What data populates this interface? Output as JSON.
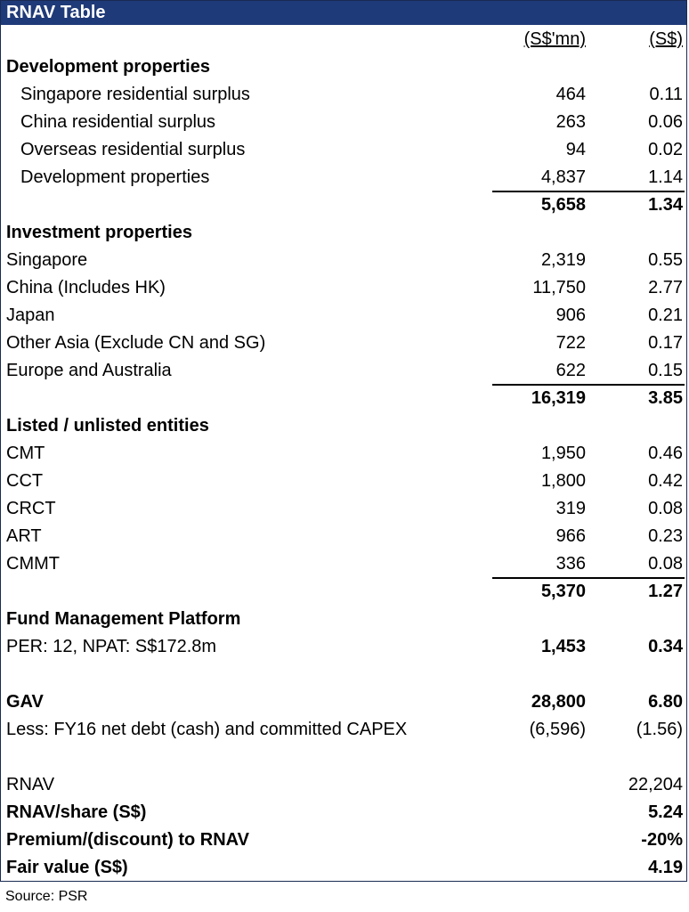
{
  "title": "RNAV Table",
  "headers": {
    "c1": "(S$'mn)",
    "c2": "(S$)"
  },
  "dev": {
    "heading": "Development properties",
    "rows": [
      {
        "label": "Singapore residential surplus",
        "v1": "464",
        "v2": "0.11"
      },
      {
        "label": "China residential surplus",
        "v1": "263",
        "v2": "0.06"
      },
      {
        "label": "Overseas residential surplus",
        "v1": "94",
        "v2": "0.02"
      },
      {
        "label": "Development properties",
        "v1": "4,837",
        "v2": "1.14"
      }
    ],
    "total": {
      "v1": "5,658",
      "v2": "1.34"
    }
  },
  "inv": {
    "heading": "Investment properties",
    "rows": [
      {
        "label": "Singapore",
        "v1": "2,319",
        "v2": "0.55"
      },
      {
        "label": "China (Includes HK)",
        "v1": "11,750",
        "v2": "2.77"
      },
      {
        "label": "Japan",
        "v1": "906",
        "v2": "0.21"
      },
      {
        "label": "Other Asia (Exclude CN and SG)",
        "v1": "722",
        "v2": "0.17"
      },
      {
        "label": "Europe and Australia",
        "v1": "622",
        "v2": "0.15"
      }
    ],
    "total": {
      "v1": "16,319",
      "v2": "3.85"
    }
  },
  "listed": {
    "heading": "Listed / unlisted entities",
    "rows": [
      {
        "label": "CMT",
        "v1": "1,950",
        "v2": "0.46"
      },
      {
        "label": "CCT",
        "v1": "1,800",
        "v2": "0.42"
      },
      {
        "label": "CRCT",
        "v1": "319",
        "v2": "0.08"
      },
      {
        "label": "ART",
        "v1": "966",
        "v2": "0.23"
      },
      {
        "label": "CMMT",
        "v1": "336",
        "v2": "0.08"
      }
    ],
    "total": {
      "v1": "5,370",
      "v2": "1.27"
    }
  },
  "fund": {
    "heading": "Fund Management Platform",
    "label": "PER: 12, NPAT: S$172.8m",
    "v1": "1,453",
    "v2": "0.34"
  },
  "gav": {
    "label": "GAV",
    "v1": "28,800",
    "v2": "6.80"
  },
  "less": {
    "label": "Less: FY16 net debt (cash) and committed CAPEX",
    "v1": "(6,596)",
    "v2": "(1.56)"
  },
  "rnav": {
    "label": "RNAV",
    "v2": "22,204"
  },
  "rnav_share": {
    "label": "RNAV/share (S$)",
    "v2": "5.24"
  },
  "premium": {
    "label": "Premium/(discount) to RNAV",
    "v2": "-20%"
  },
  "fair": {
    "label": "Fair value (S$)",
    "v2": "4.19"
  },
  "source": "Source: PSR"
}
